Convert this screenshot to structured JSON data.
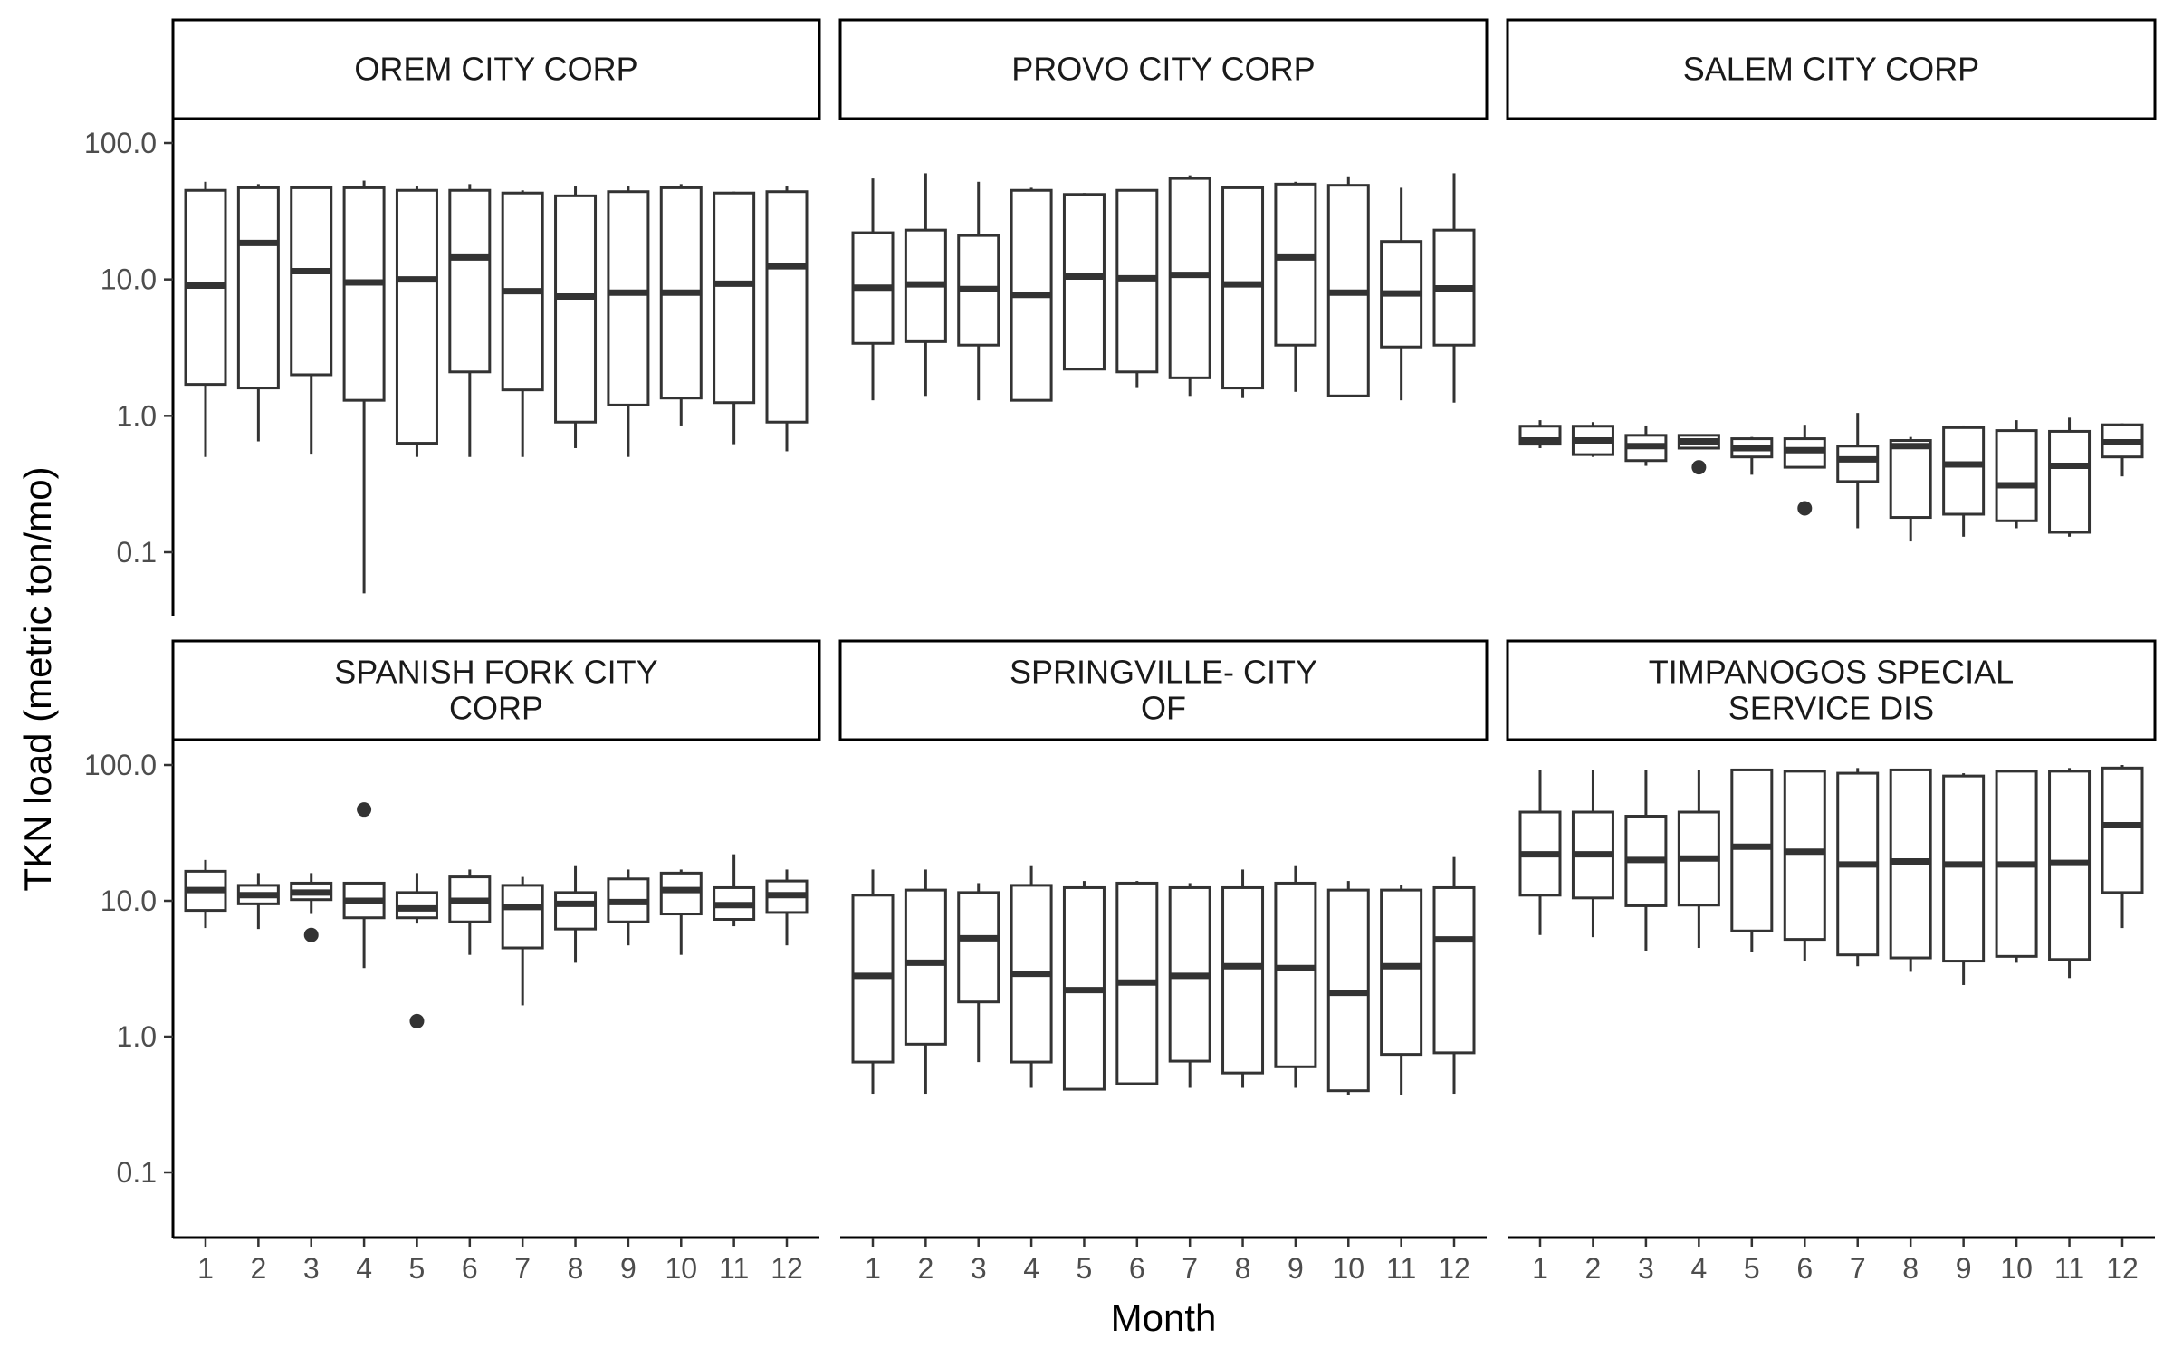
{
  "chart_data": {
    "type": "boxplot",
    "facet_layout": "2 rows x 3 columns",
    "xlabel": "Month",
    "ylabel": "TKN load (metric ton/mo)",
    "y_scale": "log10",
    "ylim": [
      0.03,
      400
    ],
    "y_ticks": [
      0.1,
      1,
      10,
      100
    ],
    "y_tick_labels": [
      "0.1",
      "1.0",
      "10.0",
      "100.0"
    ],
    "x_tick_labels": [
      "1",
      "2",
      "3",
      "4",
      "5",
      "6",
      "7",
      "8",
      "9",
      "10",
      "11",
      "12"
    ],
    "grid": false,
    "panels": [
      {
        "strip": [
          "OREM CITY CORP"
        ],
        "boxes": [
          {
            "month": 1,
            "min": 0.5,
            "q1": 1.7,
            "median": 9.0,
            "q3": 45,
            "max": 52
          },
          {
            "month": 2,
            "min": 0.65,
            "q1": 1.6,
            "median": 18.5,
            "q3": 47,
            "max": 50
          },
          {
            "month": 3,
            "min": 0.52,
            "q1": 2.0,
            "median": 11.5,
            "q3": 47,
            "max": 47
          },
          {
            "month": 4,
            "min": 0.05,
            "q1": 1.3,
            "median": 9.5,
            "q3": 47,
            "max": 53
          },
          {
            "month": 5,
            "min": 0.5,
            "q1": 0.63,
            "median": 10.0,
            "q3": 45,
            "max": 48
          },
          {
            "month": 6,
            "min": 0.5,
            "q1": 2.1,
            "median": 14.5,
            "q3": 45,
            "max": 50
          },
          {
            "month": 7,
            "min": 0.5,
            "q1": 1.55,
            "median": 8.2,
            "q3": 43,
            "max": 45
          },
          {
            "month": 8,
            "min": 0.58,
            "q1": 0.9,
            "median": 7.5,
            "q3": 41,
            "max": 48
          },
          {
            "month": 9,
            "min": 0.5,
            "q1": 1.2,
            "median": 8.0,
            "q3": 44,
            "max": 48
          },
          {
            "month": 10,
            "min": 0.85,
            "q1": 1.35,
            "median": 8.0,
            "q3": 47,
            "max": 50
          },
          {
            "month": 11,
            "min": 0.62,
            "q1": 1.25,
            "median": 9.3,
            "q3": 43,
            "max": 44
          },
          {
            "month": 12,
            "min": 0.55,
            "q1": 0.9,
            "median": 12.5,
            "q3": 44,
            "max": 48
          }
        ],
        "outliers": []
      },
      {
        "strip": [
          "PROVO CITY CORP"
        ],
        "boxes": [
          {
            "month": 1,
            "min": 1.3,
            "q1": 3.4,
            "median": 8.7,
            "q3": 22,
            "max": 55
          },
          {
            "month": 2,
            "min": 1.4,
            "q1": 3.5,
            "median": 9.2,
            "q3": 23,
            "max": 60
          },
          {
            "month": 3,
            "min": 1.3,
            "q1": 3.3,
            "median": 8.5,
            "q3": 21,
            "max": 52
          },
          {
            "month": 4,
            "min": 1.3,
            "q1": 1.3,
            "median": 7.7,
            "q3": 45,
            "max": 47
          },
          {
            "month": 5,
            "min": 2.2,
            "q1": 2.2,
            "median": 10.5,
            "q3": 42,
            "max": 43
          },
          {
            "month": 6,
            "min": 1.6,
            "q1": 2.1,
            "median": 10.2,
            "q3": 45,
            "max": 45
          },
          {
            "month": 7,
            "min": 1.4,
            "q1": 1.9,
            "median": 10.8,
            "q3": 55,
            "max": 58
          },
          {
            "month": 8,
            "min": 1.35,
            "q1": 1.6,
            "median": 9.2,
            "q3": 47,
            "max": 47
          },
          {
            "month": 9,
            "min": 1.5,
            "q1": 3.3,
            "median": 14.5,
            "q3": 50,
            "max": 52
          },
          {
            "month": 10,
            "min": 1.4,
            "q1": 1.4,
            "median": 8.0,
            "q3": 49,
            "max": 57
          },
          {
            "month": 11,
            "min": 1.3,
            "q1": 3.2,
            "median": 7.9,
            "q3": 19,
            "max": 47
          },
          {
            "month": 12,
            "min": 1.25,
            "q1": 3.3,
            "median": 8.6,
            "q3": 23,
            "max": 60
          }
        ],
        "outliers": []
      },
      {
        "strip": [
          "SALEM CITY CORP"
        ],
        "boxes": [
          {
            "month": 1,
            "min": 0.58,
            "q1": 0.62,
            "median": 0.66,
            "q3": 0.84,
            "max": 0.93
          },
          {
            "month": 2,
            "min": 0.5,
            "q1": 0.52,
            "median": 0.66,
            "q3": 0.84,
            "max": 0.9
          },
          {
            "month": 3,
            "min": 0.43,
            "q1": 0.47,
            "median": 0.6,
            "q3": 0.72,
            "max": 0.85
          },
          {
            "month": 4,
            "min": 0.58,
            "q1": 0.58,
            "median": 0.65,
            "q3": 0.72,
            "max": 0.72
          },
          {
            "month": 5,
            "min": 0.37,
            "q1": 0.5,
            "median": 0.58,
            "q3": 0.68,
            "max": 0.7
          },
          {
            "month": 6,
            "min": 0.42,
            "q1": 0.42,
            "median": 0.56,
            "q3": 0.68,
            "max": 0.86
          },
          {
            "month": 7,
            "min": 0.15,
            "q1": 0.33,
            "median": 0.48,
            "q3": 0.6,
            "max": 1.05
          },
          {
            "month": 8,
            "min": 0.12,
            "q1": 0.18,
            "median": 0.6,
            "q3": 0.66,
            "max": 0.7
          },
          {
            "month": 9,
            "min": 0.13,
            "q1": 0.19,
            "median": 0.44,
            "q3": 0.82,
            "max": 0.85
          },
          {
            "month": 10,
            "min": 0.15,
            "q1": 0.17,
            "median": 0.31,
            "q3": 0.78,
            "max": 0.93
          },
          {
            "month": 11,
            "min": 0.13,
            "q1": 0.14,
            "median": 0.43,
            "q3": 0.77,
            "max": 0.97
          },
          {
            "month": 12,
            "min": 0.36,
            "q1": 0.5,
            "median": 0.64,
            "q3": 0.86,
            "max": 0.88
          }
        ],
        "outliers": [
          {
            "month": 4,
            "value": 0.42
          },
          {
            "month": 6,
            "value": 0.21
          }
        ]
      },
      {
        "strip": [
          "SPANISH FORK CITY",
          "CORP"
        ],
        "boxes": [
          {
            "month": 1,
            "min": 6.3,
            "q1": 8.5,
            "median": 12.0,
            "q3": 16.5,
            "max": 20
          },
          {
            "month": 2,
            "min": 6.2,
            "q1": 9.5,
            "median": 11.0,
            "q3": 13.0,
            "max": 16
          },
          {
            "month": 3,
            "min": 8.0,
            "q1": 10.2,
            "median": 11.5,
            "q3": 13.5,
            "max": 16
          },
          {
            "month": 4,
            "min": 3.2,
            "q1": 7.5,
            "median": 10.0,
            "q3": 13.5,
            "max": 13.5
          },
          {
            "month": 5,
            "min": 6.8,
            "q1": 7.5,
            "median": 8.8,
            "q3": 11.5,
            "max": 16
          },
          {
            "month": 6,
            "min": 4.0,
            "q1": 7.0,
            "median": 10.0,
            "q3": 15.0,
            "max": 17
          },
          {
            "month": 7,
            "min": 1.7,
            "q1": 4.5,
            "median": 9.0,
            "q3": 13.0,
            "max": 15
          },
          {
            "month": 8,
            "min": 3.5,
            "q1": 6.2,
            "median": 9.5,
            "q3": 11.5,
            "max": 18
          },
          {
            "month": 9,
            "min": 4.7,
            "q1": 7.0,
            "median": 9.8,
            "q3": 14.5,
            "max": 17
          },
          {
            "month": 10,
            "min": 4.0,
            "q1": 8.0,
            "median": 12.0,
            "q3": 16.0,
            "max": 17
          },
          {
            "month": 11,
            "min": 6.5,
            "q1": 7.3,
            "median": 9.3,
            "q3": 12.5,
            "max": 22
          },
          {
            "month": 12,
            "min": 4.7,
            "q1": 8.2,
            "median": 11.0,
            "q3": 14.0,
            "max": 17
          }
        ],
        "outliers": [
          {
            "month": 3,
            "value": 5.6
          },
          {
            "month": 4,
            "value": 47
          },
          {
            "month": 5,
            "value": 1.3
          }
        ]
      },
      {
        "strip": [
          "SPRINGVILLE- CITY",
          "OF"
        ],
        "boxes": [
          {
            "month": 1,
            "min": 0.38,
            "q1": 0.65,
            "median": 2.8,
            "q3": 11.0,
            "max": 17
          },
          {
            "month": 2,
            "min": 0.38,
            "q1": 0.88,
            "median": 3.5,
            "q3": 12.0,
            "max": 17
          },
          {
            "month": 3,
            "min": 0.65,
            "q1": 1.8,
            "median": 5.3,
            "q3": 11.5,
            "max": 13.5
          },
          {
            "month": 4,
            "min": 0.42,
            "q1": 0.65,
            "median": 2.9,
            "q3": 13.0,
            "max": 18
          },
          {
            "month": 5,
            "min": 0.41,
            "q1": 0.41,
            "median": 2.2,
            "q3": 12.5,
            "max": 14
          },
          {
            "month": 6,
            "min": 0.45,
            "q1": 0.45,
            "median": 2.5,
            "q3": 13.5,
            "max": 14
          },
          {
            "month": 7,
            "min": 0.42,
            "q1": 0.66,
            "median": 2.8,
            "q3": 12.5,
            "max": 13.5
          },
          {
            "month": 8,
            "min": 0.42,
            "q1": 0.54,
            "median": 3.3,
            "q3": 12.5,
            "max": 17
          },
          {
            "month": 9,
            "min": 0.42,
            "q1": 0.6,
            "median": 3.2,
            "q3": 13.5,
            "max": 18
          },
          {
            "month": 10,
            "min": 0.37,
            "q1": 0.4,
            "median": 2.1,
            "q3": 12.0,
            "max": 14
          },
          {
            "month": 11,
            "min": 0.37,
            "q1": 0.74,
            "median": 3.3,
            "q3": 12.0,
            "max": 13
          },
          {
            "month": 12,
            "min": 0.38,
            "q1": 0.76,
            "median": 5.2,
            "q3": 12.5,
            "max": 21
          }
        ],
        "outliers": []
      },
      {
        "strip": [
          "TIMPANOGOS SPECIAL",
          "SERVICE DIS"
        ],
        "boxes": [
          {
            "month": 1,
            "min": 5.6,
            "q1": 11.0,
            "median": 22.0,
            "q3": 45,
            "max": 92
          },
          {
            "month": 2,
            "min": 5.4,
            "q1": 10.5,
            "median": 22.0,
            "q3": 45,
            "max": 92
          },
          {
            "month": 3,
            "min": 4.3,
            "q1": 9.2,
            "median": 20.0,
            "q3": 42,
            "max": 92
          },
          {
            "month": 4,
            "min": 4.5,
            "q1": 9.3,
            "median": 20.5,
            "q3": 45,
            "max": 92
          },
          {
            "month": 5,
            "min": 4.2,
            "q1": 6.0,
            "median": 25.0,
            "q3": 92,
            "max": 92
          },
          {
            "month": 6,
            "min": 3.6,
            "q1": 5.2,
            "median": 23.0,
            "q3": 90,
            "max": 90
          },
          {
            "month": 7,
            "min": 3.3,
            "q1": 4.0,
            "median": 18.5,
            "q3": 87,
            "max": 95
          },
          {
            "month": 8,
            "min": 3.0,
            "q1": 3.8,
            "median": 19.5,
            "q3": 92,
            "max": 92
          },
          {
            "month": 9,
            "min": 2.4,
            "q1": 3.6,
            "median": 18.5,
            "q3": 83,
            "max": 87
          },
          {
            "month": 10,
            "min": 3.5,
            "q1": 3.9,
            "median": 18.5,
            "q3": 90,
            "max": 90
          },
          {
            "month": 11,
            "min": 2.7,
            "q1": 3.7,
            "median": 19.0,
            "q3": 90,
            "max": 95
          },
          {
            "month": 12,
            "min": 6.3,
            "q1": 11.5,
            "median": 36.0,
            "q3": 95,
            "max": 100
          }
        ],
        "outliers": []
      }
    ]
  }
}
